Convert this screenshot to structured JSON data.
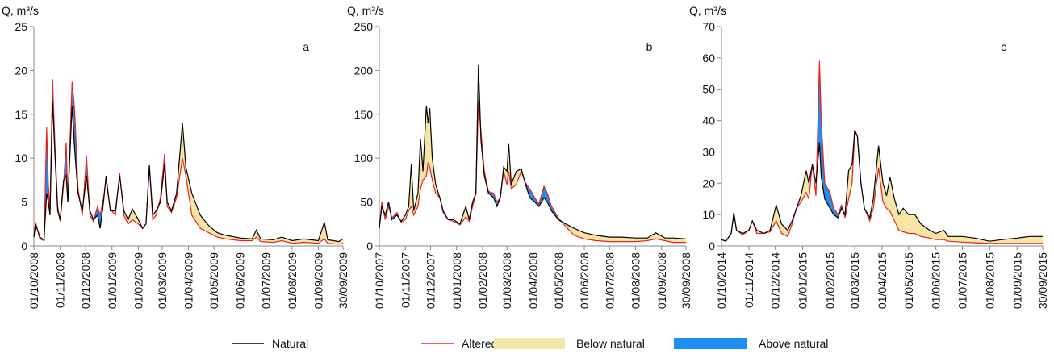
{
  "chart_data": [
    {
      "type": "area-between",
      "label": "a",
      "y_label": "Q, m³/s",
      "xlim": [
        "01/10/2008",
        "30/09/2009"
      ],
      "ylim": [
        0,
        25
      ],
      "yticks": [
        0,
        5,
        10,
        15,
        20,
        25
      ],
      "xticks": [
        "01/10/2008",
        "01/11/2008",
        "01/12/2008",
        "01/01/2009",
        "01/02/2009",
        "01/03/2009",
        "01/04/2009",
        "01/05/2009",
        "01/06/2009",
        "01/07/2009",
        "01/08/2009",
        "01/09/2009",
        "30/09/2009"
      ],
      "x": [
        "01/10/2008",
        "03/10/2008",
        "08/10/2008",
        "13/10/2008",
        "16/10/2008",
        "18/10/2008",
        "20/10/2008",
        "23/10/2008",
        "26/10/2008",
        "29/10/2008",
        "01/11/2008",
        "05/11/2008",
        "08/11/2008",
        "10/11/2008",
        "15/11/2008",
        "18/11/2008",
        "22/11/2008",
        "27/11/2008",
        "02/12/2008",
        "06/12/2008",
        "10/12/2008",
        "15/12/2008",
        "18/12/2008",
        "22/12/2008",
        "25/12/2008",
        "30/12/2008",
        "05/01/2009",
        "10/01/2009",
        "15/01/2009",
        "20/01/2009",
        "25/01/2009",
        "01/02/2009",
        "06/02/2009",
        "10/02/2009",
        "14/02/2009",
        "18/02/2009",
        "22/02/2009",
        "27/02/2009",
        "04/03/2009",
        "07/03/2009",
        "12/03/2009",
        "18/03/2009",
        "25/03/2009",
        "29/03/2009",
        "05/04/2009",
        "15/04/2009",
        "25/04/2009",
        "05/05/2009",
        "15/05/2009",
        "01/06/2009",
        "15/06/2009",
        "20/06/2009",
        "25/06/2009",
        "10/07/2009",
        "20/07/2009",
        "01/08/2009",
        "15/08/2009",
        "01/09/2009",
        "08/09/2009",
        "12/09/2009",
        "25/09/2009",
        "30/09/2009"
      ],
      "series": [
        {
          "name": "Natural",
          "color": "#000000",
          "values": [
            1.0,
            2.5,
            1.0,
            0.7,
            6.0,
            5.0,
            3.5,
            16.5,
            10.0,
            4.0,
            3.0,
            7.5,
            8.0,
            5.0,
            16.0,
            11.0,
            6.0,
            4.0,
            8.0,
            4.0,
            3.0,
            3.5,
            2.0,
            5.0,
            8.0,
            4.0,
            4.0,
            8.0,
            4.0,
            3.0,
            4.2,
            3.0,
            2.0,
            2.5,
            9.2,
            3.5,
            4.0,
            5.0,
            9.3,
            5.0,
            4.0,
            6.0,
            14.0,
            9.0,
            6.0,
            3.5,
            2.3,
            1.5,
            1.2,
            0.9,
            0.8,
            1.8,
            0.8,
            0.7,
            1.0,
            0.6,
            0.8,
            0.6,
            2.7,
            0.7,
            0.5,
            0.8
          ]
        },
        {
          "name": "Altered",
          "color": "#e8231e",
          "values": [
            1.0,
            2.7,
            0.8,
            0.6,
            13.5,
            7.0,
            4.0,
            19.0,
            11.0,
            4.5,
            2.8,
            7.0,
            11.8,
            5.0,
            18.7,
            15.5,
            6.5,
            3.5,
            10.2,
            3.5,
            2.8,
            4.5,
            3.5,
            5.5,
            7.5,
            4.2,
            3.5,
            8.3,
            3.5,
            2.5,
            3.0,
            2.5,
            2.0,
            2.5,
            9.0,
            3.0,
            3.5,
            5.5,
            10.5,
            4.5,
            3.8,
            5.5,
            10.0,
            8.0,
            3.5,
            2.0,
            1.5,
            1.0,
            0.8,
            0.6,
            0.6,
            1.0,
            0.5,
            0.4,
            0.6,
            0.3,
            0.4,
            0.3,
            0.8,
            0.3,
            0.2,
            0.3
          ]
        }
      ],
      "fills": [
        {
          "name": "Below natural",
          "color": "#f5e6a6"
        },
        {
          "name": "Above natural",
          "color": "#1e8ef0"
        }
      ]
    },
    {
      "type": "area-between",
      "label": "b",
      "y_label": "Q, m³/s",
      "xlim": [
        "01/10/2007",
        "30/09/2008"
      ],
      "ylim": [
        0,
        250
      ],
      "yticks": [
        0,
        50,
        100,
        150,
        200,
        250
      ],
      "xticks": [
        "01/10/2007",
        "01/11/2007",
        "01/12/2007",
        "01/01/2008",
        "01/02/2008",
        "01/03/2008",
        "01/04/2008",
        "01/05/2008",
        "01/06/2008",
        "01/07/2008",
        "01/08/2008",
        "01/09/2008",
        "30/09/2008"
      ],
      "x": [
        "01/10/2007",
        "04/10/2007",
        "08/10/2007",
        "12/10/2007",
        "16/10/2007",
        "22/10/2007",
        "27/10/2007",
        "01/11/2007",
        "05/11/2007",
        "08/11/2007",
        "11/11/2007",
        "16/11/2007",
        "19/11/2007",
        "22/11/2007",
        "26/11/2007",
        "28/11/2007",
        "30/11/2007",
        "03/12/2007",
        "07/12/2007",
        "12/12/2007",
        "16/12/2007",
        "22/12/2007",
        "28/12/2007",
        "05/01/2008",
        "12/01/2008",
        "16/01/2008",
        "20/01/2008",
        "24/01/2008",
        "27/01/2008",
        "30/01/2008",
        "03/02/2008",
        "08/02/2008",
        "14/02/2008",
        "18/02/2008",
        "22/02/2008",
        "26/02/2008",
        "01/03/2008",
        "03/03/2008",
        "06/03/2008",
        "12/03/2008",
        "18/03/2008",
        "23/03/2008",
        "28/03/2008",
        "03/04/2008",
        "08/04/2008",
        "14/04/2008",
        "18/04/2008",
        "23/04/2008",
        "01/05/2008",
        "10/05/2008",
        "20/05/2008",
        "01/06/2008",
        "15/06/2008",
        "01/07/2008",
        "15/07/2008",
        "01/08/2008",
        "15/08/2008",
        "25/08/2008",
        "05/09/2008",
        "15/09/2008",
        "30/09/2008"
      ],
      "series": [
        {
          "name": "Natural",
          "color": "#000000",
          "values": [
            20,
            45,
            35,
            50,
            30,
            35,
            28,
            35,
            45,
            93,
            40,
            60,
            122,
            85,
            160,
            140,
            157,
            100,
            70,
            55,
            40,
            30,
            30,
            25,
            45,
            30,
            50,
            60,
            207,
            120,
            80,
            60,
            55,
            45,
            55,
            90,
            85,
            117,
            70,
            85,
            88,
            70,
            55,
            50,
            45,
            55,
            50,
            40,
            30,
            25,
            20,
            15,
            12,
            10,
            10,
            9,
            9,
            15,
            9,
            9,
            8
          ]
        },
        {
          "name": "Altered",
          "color": "#e8231e",
          "values": [
            20,
            50,
            30,
            45,
            32,
            38,
            27,
            30,
            40,
            45,
            35,
            45,
            65,
            75,
            80,
            95,
            90,
            75,
            60,
            55,
            38,
            30,
            28,
            24,
            33,
            28,
            45,
            60,
            165,
            130,
            85,
            62,
            60,
            50,
            55,
            85,
            70,
            85,
            65,
            70,
            85,
            72,
            65,
            55,
            48,
            68,
            60,
            45,
            32,
            22,
            12,
            8,
            6,
            5,
            5,
            5,
            6,
            8,
            6,
            4,
            4
          ]
        }
      ],
      "fills": [
        {
          "name": "Below natural",
          "color": "#f5e6a6"
        },
        {
          "name": "Above natural",
          "color": "#1e8ef0"
        }
      ]
    },
    {
      "type": "area-between",
      "label": "c",
      "y_label": "Q, m³/s",
      "xlim": [
        "01/10/2014",
        "30/09/2015"
      ],
      "ylim": [
        0,
        70
      ],
      "yticks": [
        0,
        10,
        20,
        30,
        40,
        50,
        60,
        70
      ],
      "xticks": [
        "01/10/2014",
        "01/11/2014",
        "01/12/2014",
        "01/01/2015",
        "01/02/2015",
        "01/03/2015",
        "01/04/2015",
        "01/05/2015",
        "01/06/2015",
        "01/07/2015",
        "01/08/2015",
        "01/09/2015",
        "30/09/2015"
      ],
      "x": [
        "01/10/2014",
        "06/10/2014",
        "12/10/2014",
        "15/10/2014",
        "18/10/2014",
        "25/10/2014",
        "01/11/2014",
        "05/11/2014",
        "10/11/2014",
        "18/11/2014",
        "25/11/2014",
        "02/12/2014",
        "08/12/2014",
        "15/12/2014",
        "20/12/2014",
        "25/12/2014",
        "30/12/2014",
        "05/01/2015",
        "08/01/2015",
        "12/01/2015",
        "16/01/2015",
        "20/01/2015",
        "22/01/2015",
        "26/01/2015",
        "01/02/2015",
        "05/02/2015",
        "10/02/2015",
        "14/02/2015",
        "18/02/2015",
        "22/02/2015",
        "26/02/2015",
        "01/03/2015",
        "04/03/2015",
        "08/03/2015",
        "12/03/2015",
        "18/03/2015",
        "22/03/2015",
        "28/03/2015",
        "02/04/2015",
        "06/04/2015",
        "10/04/2015",
        "15/04/2015",
        "20/04/2015",
        "25/04/2015",
        "01/05/2015",
        "08/05/2015",
        "15/05/2015",
        "25/05/2015",
        "01/06/2015",
        "10/06/2015",
        "15/06/2015",
        "01/07/2015",
        "15/07/2015",
        "01/08/2015",
        "15/08/2015",
        "01/09/2015",
        "15/09/2015",
        "30/09/2015"
      ],
      "series": [
        {
          "name": "Natural",
          "color": "#000000",
          "values": [
            2,
            1.5,
            4,
            10.5,
            5,
            4,
            5,
            8,
            5,
            4,
            5,
            13,
            7,
            5,
            8,
            12,
            16,
            24,
            20,
            26,
            20,
            33,
            22,
            15,
            12,
            10,
            9,
            12,
            10,
            24,
            26,
            37,
            35,
            20,
            12,
            9,
            15,
            32,
            20,
            16,
            22,
            15,
            10,
            12,
            10,
            10,
            7,
            5,
            4,
            5,
            3,
            3,
            2.5,
            1.5,
            2,
            2.5,
            3,
            3
          ]
        },
        {
          "name": "Altered",
          "color": "#e8231e",
          "values": [
            2,
            1.5,
            4,
            10.5,
            5,
            3.5,
            5,
            8,
            4,
            4,
            4.5,
            8,
            4,
            3,
            7,
            12,
            14,
            17,
            15,
            26,
            16,
            59,
            40,
            20,
            17,
            12,
            10,
            13,
            9,
            15,
            20,
            36,
            35,
            20,
            12,
            8,
            12,
            25,
            14,
            12,
            11,
            8,
            5,
            4.5,
            4,
            4,
            3,
            2.5,
            2,
            2,
            1.5,
            1.2,
            1,
            0.8,
            0.8,
            0.8,
            0.8,
            0.8
          ]
        }
      ],
      "fills": [
        {
          "name": "Below natural",
          "color": "#f5e6a6"
        },
        {
          "name": "Above natural",
          "color": "#1e8ef0"
        }
      ]
    }
  ]
}
